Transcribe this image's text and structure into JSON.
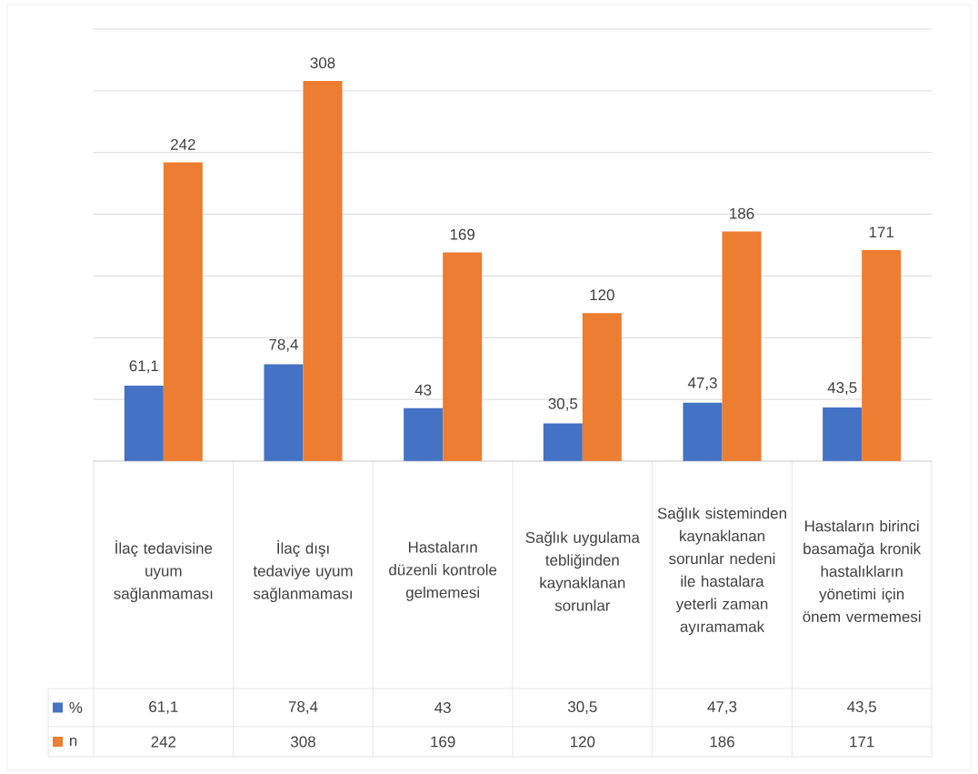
{
  "chart_data": {
    "type": "bar",
    "categories": [
      "İlaç tedavisine uyum sağlanmaması",
      "İlaç dışı tedaviye uyum sağlanmaması",
      "Hastaların düzenli kontrole gelmemesi",
      "Sağlık uygulama tebliğinden kaynaklanan sorunlar",
      "Sağlık sisteminden kaynaklanan sorunlar nedeni ile hastalara yeterli zaman ayıramamak",
      "Hastaların birinci basamağa kronik hastalıkların yönetimi için önem vermemesi"
    ],
    "series": [
      {
        "name": "%",
        "color": "#4472c4",
        "values": [
          61.1,
          78.4,
          43,
          30.5,
          47.3,
          43.5
        ],
        "value_labels": [
          "61,1",
          "78,4",
          "43",
          "30,5",
          "47,3",
          "43,5"
        ]
      },
      {
        "name": "n",
        "color": "#ed7d31",
        "values": [
          242,
          308,
          169,
          120,
          186,
          171
        ],
        "value_labels": [
          "242",
          "308",
          "169",
          "120",
          "186",
          "171"
        ]
      }
    ],
    "ylim": [
      0,
      350
    ],
    "yticks": [
      {
        "value": 0,
        "label": null
      },
      {
        "value": 50,
        "label": null
      },
      {
        "value": 100,
        "label": null
      },
      {
        "value": 150,
        "label": null
      },
      {
        "value": 200,
        "label": null
      },
      {
        "value": 250,
        "label": null
      },
      {
        "value": 300,
        "label": null
      },
      {
        "value": 350,
        "label": null
      }
    ],
    "grid": "y",
    "legend": "bottom"
  }
}
